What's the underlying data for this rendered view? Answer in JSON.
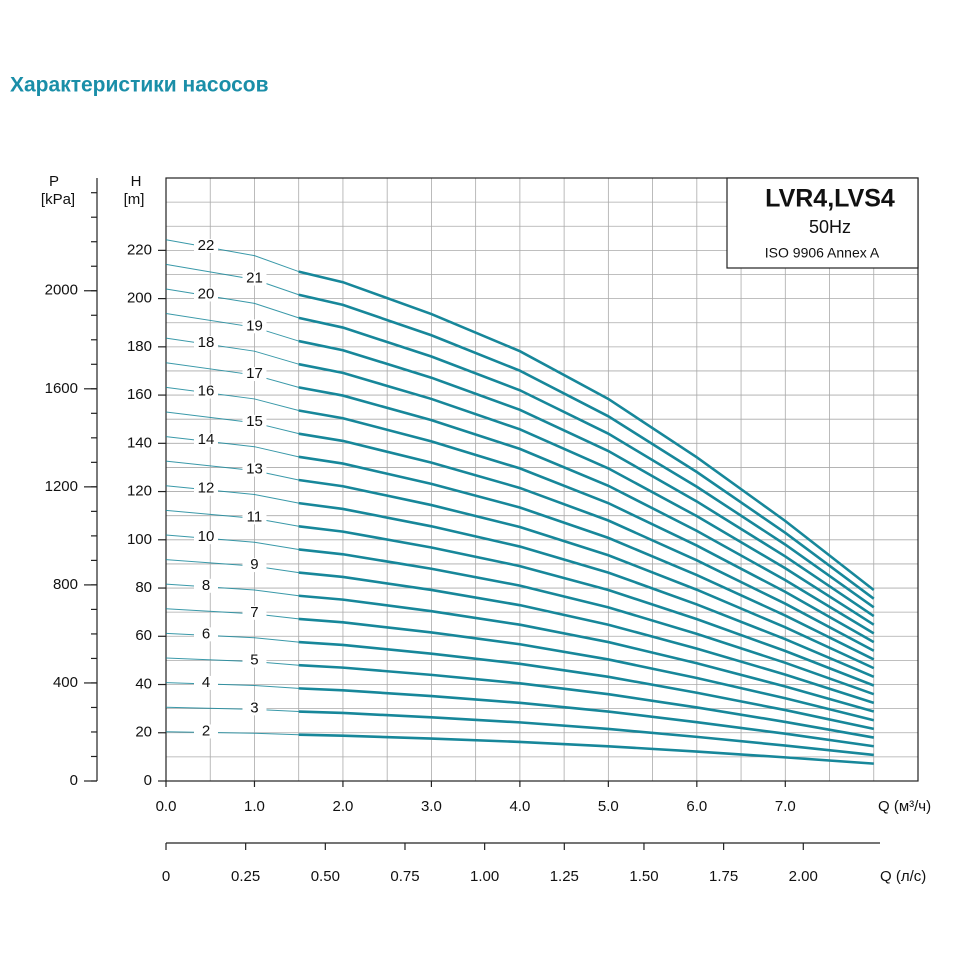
{
  "chart_data": {
    "type": "line",
    "title": "Характеристики насосов",
    "y_label": "H",
    "y_unit": "[m]",
    "y2_label": "P",
    "y2_unit": "[kPa]",
    "x_label": "Q (м³/ч)",
    "x2_label": "Q (л/с)",
    "box": [
      "LVR4,LVS4",
      "50Hz",
      "ISO 9906 Annex A"
    ],
    "color": "#17879a",
    "x": [
      0,
      1,
      1.5,
      2,
      3,
      4,
      5,
      6,
      7,
      8
    ],
    "xlim": [
      0,
      8.5
    ],
    "ylim": [
      0,
      250
    ],
    "y2lim": [
      0,
      2460
    ],
    "x2lim": [
      0,
      2.36
    ],
    "xticks": [
      {
        "value": 0,
        "label": "0.0"
      },
      {
        "value": 1,
        "label": "1.0"
      },
      {
        "value": 2,
        "label": "2.0"
      },
      {
        "value": 3,
        "label": "3.0"
      },
      {
        "value": 4,
        "label": "4.0"
      },
      {
        "value": 5,
        "label": "5.0"
      },
      {
        "value": 6,
        "label": "6.0"
      },
      {
        "value": 7,
        "label": "7.0"
      }
    ],
    "yticks": [
      0,
      20,
      40,
      60,
      80,
      100,
      120,
      140,
      160,
      180,
      200,
      220
    ],
    "y2ticks": [
      0,
      400,
      800,
      1200,
      1600,
      2000
    ],
    "y2minor": [
      0,
      100,
      200,
      300,
      400,
      500,
      600,
      700,
      800,
      900,
      1000,
      1100,
      1200,
      1300,
      1400,
      1500,
      1600,
      1700,
      1800,
      1900,
      2000,
      2100,
      2200,
      2300,
      2400
    ],
    "x2ticks": [
      0,
      0.25,
      {
        "value": 0.5,
        "label": "0.50"
      },
      0.75,
      {
        "value": 1,
        "label": "1.00"
      },
      1.25,
      {
        "value": 1.5,
        "label": "1.50"
      },
      1.75,
      {
        "value": 2,
        "label": "2.00"
      }
    ],
    "xgrid": [
      0,
      0.5,
      1,
      1.5,
      2,
      2.5,
      3,
      3.5,
      4,
      4.5,
      5,
      5.5,
      6,
      6.5,
      7,
      7.5,
      8,
      8.5
    ],
    "ygrid": [
      0,
      10,
      20,
      30,
      40,
      50,
      60,
      70,
      80,
      90,
      100,
      110,
      120,
      130,
      140,
      150,
      160,
      170,
      180,
      190,
      200,
      210,
      220,
      230,
      240,
      250
    ],
    "series": [
      {
        "name": "2",
        "values": [
          20.4,
          19.8,
          19.2,
          18.8,
          17.6,
          16.2,
          14.4,
          12.2,
          9.8,
          7.2
        ]
      },
      {
        "name": "3",
        "values": [
          30.6,
          29.7,
          28.8,
          28.2,
          26.4,
          24.3,
          21.6,
          18.3,
          14.7,
          10.8
        ]
      },
      {
        "name": "4",
        "values": [
          40.8,
          39.6,
          38.4,
          37.6,
          35.2,
          32.4,
          28.8,
          24.4,
          19.6,
          14.4
        ]
      },
      {
        "name": "5",
        "values": [
          51,
          49.5,
          48,
          47,
          44,
          40.5,
          36,
          30.5,
          24.5,
          18
        ]
      },
      {
        "name": "6",
        "values": [
          61.2,
          59.4,
          57.6,
          56.4,
          52.8,
          48.6,
          43.2,
          36.6,
          29.4,
          21.6
        ]
      },
      {
        "name": "7",
        "values": [
          71.4,
          69.3,
          67.2,
          65.8,
          61.6,
          56.7,
          50.4,
          42.7,
          34.3,
          25.2
        ]
      },
      {
        "name": "8",
        "values": [
          81.6,
          79.2,
          76.8,
          75.2,
          70.4,
          64.8,
          57.6,
          48.8,
          39.2,
          28.8
        ]
      },
      {
        "name": "9",
        "values": [
          91.8,
          89.1,
          86.4,
          84.6,
          79.2,
          72.9,
          64.8,
          54.9,
          44.1,
          32.4
        ]
      },
      {
        "name": "10",
        "values": [
          102,
          99,
          96,
          94,
          88,
          81,
          72,
          61,
          49,
          36
        ]
      },
      {
        "name": "11",
        "values": [
          112.2,
          108.9,
          105.6,
          103.4,
          96.8,
          89.1,
          79.2,
          67.1,
          53.9,
          39.6
        ]
      },
      {
        "name": "12",
        "values": [
          122.4,
          118.8,
          115.2,
          112.8,
          105.6,
          97.2,
          86.4,
          73.2,
          58.8,
          43.2
        ]
      },
      {
        "name": "13",
        "values": [
          132.6,
          128.7,
          124.8,
          122.2,
          114.4,
          105.3,
          93.6,
          79.3,
          63.7,
          46.8
        ]
      },
      {
        "name": "14",
        "values": [
          142.8,
          138.6,
          134.4,
          131.6,
          123.2,
          113.4,
          100.8,
          85.4,
          68.6,
          50.4
        ]
      },
      {
        "name": "15",
        "values": [
          153,
          148.5,
          144,
          141,
          132,
          121.5,
          108,
          91.5,
          73.5,
          54
        ]
      },
      {
        "name": "16",
        "values": [
          163.2,
          158.4,
          153.6,
          150.4,
          140.8,
          129.6,
          115.2,
          97.6,
          78.4,
          57.6
        ]
      },
      {
        "name": "17",
        "values": [
          173.4,
          168.3,
          163.2,
          159.8,
          149.6,
          137.7,
          122.4,
          103.7,
          83.3,
          61.2
        ]
      },
      {
        "name": "18",
        "values": [
          183.6,
          178.2,
          172.8,
          169.2,
          158.4,
          145.8,
          129.6,
          109.8,
          88.2,
          64.8
        ]
      },
      {
        "name": "19",
        "values": [
          193.8,
          188.1,
          182.4,
          178.6,
          167.2,
          153.9,
          136.8,
          115.9,
          93.1,
          68.4
        ]
      },
      {
        "name": "20",
        "values": [
          204,
          198,
          192,
          188,
          176,
          162,
          144,
          122,
          98,
          72
        ]
      },
      {
        "name": "21",
        "values": [
          214.2,
          207.9,
          201.6,
          197.4,
          184.8,
          170.1,
          151.2,
          128.1,
          102.9,
          75.6
        ]
      },
      {
        "name": "22",
        "values": [
          224.4,
          217.8,
          211.2,
          206.8,
          193.6,
          178.2,
          158.4,
          134.2,
          107.8,
          79.2
        ]
      }
    ]
  }
}
